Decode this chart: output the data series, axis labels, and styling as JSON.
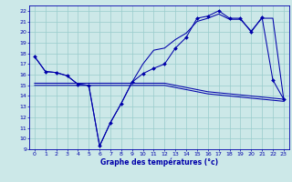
{
  "xlabel": "Graphe des températures (°c)",
  "xlim": [
    -0.5,
    23.5
  ],
  "ylim": [
    9,
    22.5
  ],
  "yticks": [
    9,
    10,
    11,
    12,
    13,
    14,
    15,
    16,
    17,
    18,
    19,
    20,
    21,
    22
  ],
  "xticks": [
    0,
    1,
    2,
    3,
    4,
    5,
    6,
    7,
    8,
    9,
    10,
    11,
    12,
    13,
    14,
    15,
    16,
    17,
    18,
    19,
    20,
    21,
    22,
    23
  ],
  "bg_color": "#cce8e8",
  "line_color": "#0000aa",
  "grid_color": "#99cccc",
  "line1_x": [
    0,
    1,
    2,
    3,
    4,
    5,
    6,
    7,
    8,
    9,
    10,
    11,
    12,
    13,
    14,
    15,
    16,
    17,
    18,
    19,
    20,
    21,
    22,
    23
  ],
  "line1_y": [
    17.7,
    16.3,
    16.2,
    15.9,
    15.1,
    15.0,
    9.3,
    11.5,
    13.3,
    15.3,
    16.1,
    16.6,
    17.0,
    18.5,
    19.5,
    21.3,
    21.5,
    22.0,
    21.3,
    21.3,
    20.0,
    21.4,
    15.5,
    13.7
  ],
  "line2_x": [
    0,
    1,
    2,
    3,
    4,
    5,
    6,
    7,
    8,
    9,
    10,
    11,
    12,
    13,
    14,
    15,
    16,
    17,
    18,
    19,
    20,
    21,
    22,
    23
  ],
  "line2_y": [
    17.7,
    16.3,
    16.2,
    15.9,
    15.1,
    15.0,
    9.3,
    11.5,
    13.3,
    15.3,
    17.0,
    18.3,
    18.5,
    19.3,
    19.9,
    21.0,
    21.3,
    21.7,
    21.2,
    21.2,
    20.1,
    21.3,
    21.3,
    13.7
  ],
  "line3_x": [
    0,
    1,
    2,
    3,
    4,
    5,
    6,
    7,
    8,
    9,
    10,
    11,
    12,
    13,
    14,
    15,
    16,
    17,
    18,
    19,
    20,
    21,
    22,
    23
  ],
  "line3_y": [
    15.0,
    15.0,
    15.0,
    15.0,
    15.0,
    15.0,
    15.0,
    15.0,
    15.0,
    15.0,
    15.0,
    15.0,
    15.0,
    14.8,
    14.6,
    14.4,
    14.2,
    14.1,
    14.0,
    13.9,
    13.8,
    13.7,
    13.6,
    13.5
  ],
  "line4_x": [
    0,
    1,
    2,
    3,
    4,
    5,
    6,
    7,
    8,
    9,
    10,
    11,
    12,
    13,
    14,
    15,
    16,
    17,
    18,
    19,
    20,
    21,
    22,
    23
  ],
  "line4_y": [
    15.2,
    15.2,
    15.2,
    15.2,
    15.2,
    15.2,
    15.2,
    15.2,
    15.2,
    15.2,
    15.2,
    15.2,
    15.2,
    15.0,
    14.8,
    14.6,
    14.4,
    14.3,
    14.2,
    14.1,
    14.0,
    13.9,
    13.8,
    13.7
  ]
}
